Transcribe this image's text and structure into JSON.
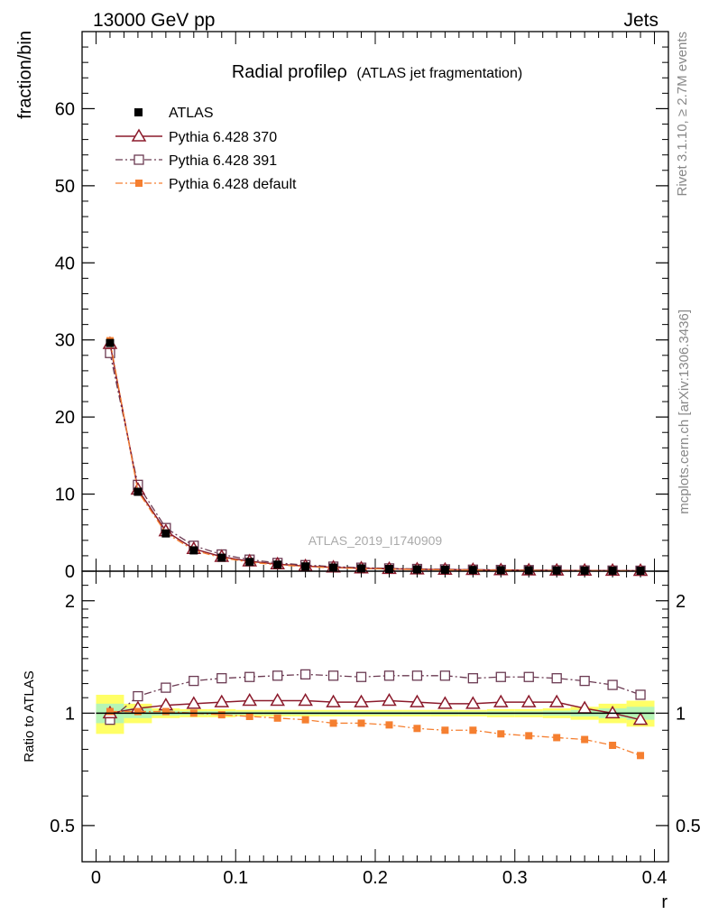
{
  "header": {
    "left": "13000 GeV pp",
    "right": "Jets"
  },
  "side_text": {
    "rivet": "Rivet 3.1.10, ≥ 2.7M events",
    "mcplots": "mcplots.cern.ch [arXiv:1306.3436]"
  },
  "watermark": "ATLAS_2019_I1740909",
  "chart_data": {
    "type": "line",
    "title": "Radial profileρ",
    "subtitle": "(ATLAS jet fragmentation)",
    "xlabel": "r",
    "ylabel": "fraction/bin",
    "ratio_ylabel": "Ratio to ATLAS",
    "xlim": [
      -0.01,
      0.41
    ],
    "ylim": [
      0,
      70
    ],
    "ratio_ylim": [
      0.4,
      2.4
    ],
    "x_ticks": [
      "0",
      "0.1",
      "0.2",
      "0.3",
      "0.4"
    ],
    "y_ticks": [
      "0",
      "10",
      "20",
      "30",
      "40",
      "50",
      "60"
    ],
    "ratio_ticks": [
      "0.5",
      "1",
      "2"
    ],
    "legend_position": "top-left",
    "x": [
      0.01,
      0.03,
      0.05,
      0.07,
      0.09,
      0.11,
      0.13,
      0.15,
      0.17,
      0.19,
      0.21,
      0.23,
      0.25,
      0.27,
      0.29,
      0.31,
      0.33,
      0.35,
      0.37,
      0.39
    ],
    "series": [
      {
        "name": "ATLAS",
        "color": "#000000",
        "marker": "square-filled",
        "values": [
          29.6,
          10.3,
          4.9,
          2.7,
          1.75,
          1.2,
          0.85,
          0.62,
          0.47,
          0.36,
          0.29,
          0.23,
          0.19,
          0.16,
          0.13,
          0.11,
          0.09,
          0.08,
          0.07,
          0.06
        ],
        "ratio": [
          1.0,
          1.0,
          1.0,
          1.0,
          1.0,
          1.0,
          1.0,
          1.0,
          1.0,
          1.0,
          1.0,
          1.0,
          1.0,
          1.0,
          1.0,
          1.0,
          1.0,
          1.0,
          1.0,
          1.0
        ]
      },
      {
        "name": "Pythia 6.428 370",
        "color": "#8b1a2b",
        "marker": "triangle-open",
        "line": "solid",
        "values": [
          29.5,
          10.6,
          5.2,
          2.9,
          1.87,
          1.29,
          0.91,
          0.66,
          0.5,
          0.38,
          0.31,
          0.245,
          0.2,
          0.17,
          0.14,
          0.118,
          0.096,
          0.082,
          0.07,
          0.057
        ],
        "ratio": [
          1.0,
          1.03,
          1.05,
          1.06,
          1.07,
          1.08,
          1.08,
          1.08,
          1.07,
          1.07,
          1.08,
          1.07,
          1.06,
          1.06,
          1.07,
          1.07,
          1.07,
          1.03,
          1.0,
          0.96
        ]
      },
      {
        "name": "Pythia 6.428 391",
        "color": "#6b3a52",
        "marker": "square-open",
        "line": "dashdot",
        "values": [
          28.3,
          11.2,
          5.6,
          3.3,
          2.17,
          1.5,
          1.07,
          0.79,
          0.59,
          0.45,
          0.36,
          0.29,
          0.24,
          0.2,
          0.165,
          0.14,
          0.113,
          0.098,
          0.083,
          0.067
        ],
        "ratio": [
          0.96,
          1.11,
          1.17,
          1.22,
          1.24,
          1.25,
          1.26,
          1.27,
          1.26,
          1.25,
          1.26,
          1.26,
          1.26,
          1.24,
          1.25,
          1.25,
          1.24,
          1.22,
          1.19,
          1.12
        ]
      },
      {
        "name": "Pythia 6.428 default",
        "color": "#f57f30",
        "marker": "square-filled",
        "line": "dashdot",
        "values": [
          29.9,
          10.35,
          4.95,
          2.72,
          1.73,
          1.17,
          0.82,
          0.6,
          0.44,
          0.34,
          0.27,
          0.21,
          0.17,
          0.143,
          0.115,
          0.096,
          0.078,
          0.068,
          0.058,
          0.047
        ],
        "ratio": [
          1.01,
          1.01,
          1.01,
          1.0,
          0.99,
          0.98,
          0.97,
          0.96,
          0.94,
          0.94,
          0.93,
          0.91,
          0.9,
          0.9,
          0.88,
          0.87,
          0.86,
          0.85,
          0.82,
          0.77
        ]
      }
    ],
    "uncertainty_band": {
      "outer_color": "#ffff66",
      "inner_color": "#b6f5b6",
      "outer_width": [
        0.12,
        0.06,
        0.03,
        0.025,
        0.025,
        0.02,
        0.02,
        0.02,
        0.02,
        0.02,
        0.02,
        0.02,
        0.02,
        0.02,
        0.025,
        0.025,
        0.03,
        0.04,
        0.06,
        0.08
      ],
      "inner_width": [
        0.06,
        0.03,
        0.015,
        0.012,
        0.012,
        0.01,
        0.01,
        0.01,
        0.01,
        0.01,
        0.01,
        0.01,
        0.01,
        0.01,
        0.012,
        0.012,
        0.015,
        0.02,
        0.03,
        0.04
      ]
    }
  }
}
